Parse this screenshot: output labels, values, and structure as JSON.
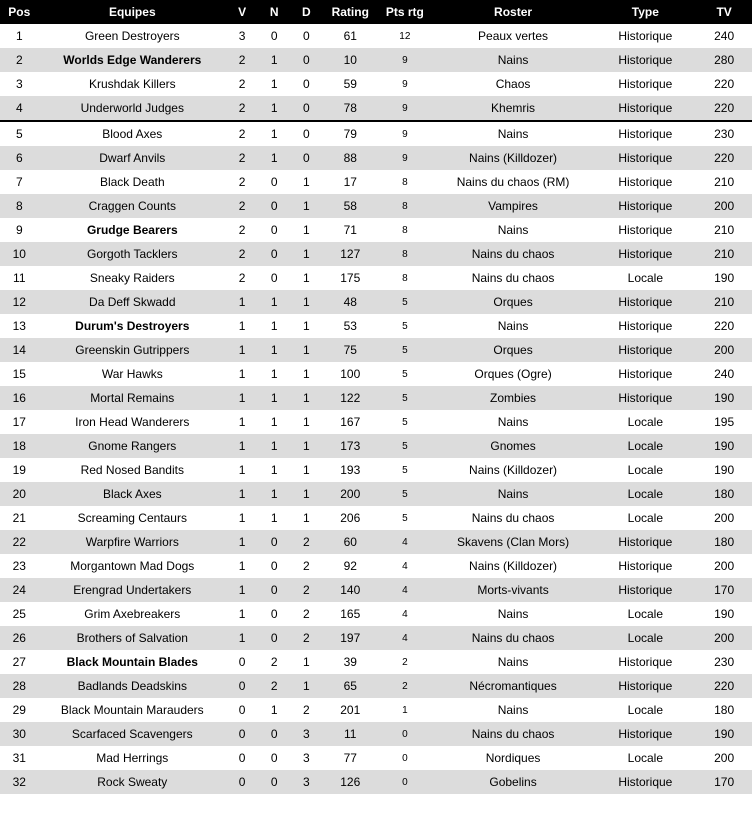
{
  "columns": [
    "Pos",
    "Equipes",
    "V",
    "N",
    "D",
    "Rating",
    "Pts rtg",
    "Roster",
    "Type",
    "TV"
  ],
  "separator_after": 4,
  "rows": [
    {
      "pos": 1,
      "equipe": "Green Destroyers",
      "bold": false,
      "v": 3,
      "n": 0,
      "d": 0,
      "rating": 61,
      "ptsrtg": 12,
      "roster": "Peaux vertes",
      "type": "Historique",
      "tv": 240
    },
    {
      "pos": 2,
      "equipe": "Worlds Edge Wanderers",
      "bold": true,
      "v": 2,
      "n": 1,
      "d": 0,
      "rating": 10,
      "ptsrtg": 9,
      "roster": "Nains",
      "type": "Historique",
      "tv": 280
    },
    {
      "pos": 3,
      "equipe": "Krushdak Killers",
      "bold": false,
      "v": 2,
      "n": 1,
      "d": 0,
      "rating": 59,
      "ptsrtg": 9,
      "roster": "Chaos",
      "type": "Historique",
      "tv": 220
    },
    {
      "pos": 4,
      "equipe": "Underworld Judges",
      "bold": false,
      "v": 2,
      "n": 1,
      "d": 0,
      "rating": 78,
      "ptsrtg": 9,
      "roster": "Khemris",
      "type": "Historique",
      "tv": 220
    },
    {
      "pos": 5,
      "equipe": "Blood Axes",
      "bold": false,
      "v": 2,
      "n": 1,
      "d": 0,
      "rating": 79,
      "ptsrtg": 9,
      "roster": "Nains",
      "type": "Historique",
      "tv": 230
    },
    {
      "pos": 6,
      "equipe": "Dwarf Anvils",
      "bold": false,
      "v": 2,
      "n": 1,
      "d": 0,
      "rating": 88,
      "ptsrtg": 9,
      "roster": "Nains (Killdozer)",
      "type": "Historique",
      "tv": 220
    },
    {
      "pos": 7,
      "equipe": "Black Death",
      "bold": false,
      "v": 2,
      "n": 0,
      "d": 1,
      "rating": 17,
      "ptsrtg": 8,
      "roster": "Nains du chaos (RM)",
      "type": "Historique",
      "tv": 210
    },
    {
      "pos": 8,
      "equipe": "Craggen Counts",
      "bold": false,
      "v": 2,
      "n": 0,
      "d": 1,
      "rating": 58,
      "ptsrtg": 8,
      "roster": "Vampires",
      "type": "Historique",
      "tv": 200
    },
    {
      "pos": 9,
      "equipe": "Grudge Bearers",
      "bold": true,
      "v": 2,
      "n": 0,
      "d": 1,
      "rating": 71,
      "ptsrtg": 8,
      "roster": "Nains",
      "type": "Historique",
      "tv": 210
    },
    {
      "pos": 10,
      "equipe": "Gorgoth Tacklers",
      "bold": false,
      "v": 2,
      "n": 0,
      "d": 1,
      "rating": 127,
      "ptsrtg": 8,
      "roster": "Nains du chaos",
      "type": "Historique",
      "tv": 210
    },
    {
      "pos": 11,
      "equipe": "Sneaky Raiders",
      "bold": false,
      "v": 2,
      "n": 0,
      "d": 1,
      "rating": 175,
      "ptsrtg": 8,
      "roster": "Nains du chaos",
      "type": "Locale",
      "tv": 190
    },
    {
      "pos": 12,
      "equipe": "Da Deff Skwadd",
      "bold": false,
      "v": 1,
      "n": 1,
      "d": 1,
      "rating": 48,
      "ptsrtg": 5,
      "roster": "Orques",
      "type": "Historique",
      "tv": 210
    },
    {
      "pos": 13,
      "equipe": "Durum's Destroyers",
      "bold": true,
      "v": 1,
      "n": 1,
      "d": 1,
      "rating": 53,
      "ptsrtg": 5,
      "roster": "Nains",
      "type": "Historique",
      "tv": 220
    },
    {
      "pos": 14,
      "equipe": "Greenskin Gutrippers",
      "bold": false,
      "v": 1,
      "n": 1,
      "d": 1,
      "rating": 75,
      "ptsrtg": 5,
      "roster": "Orques",
      "type": "Historique",
      "tv": 200
    },
    {
      "pos": 15,
      "equipe": "War Hawks",
      "bold": false,
      "v": 1,
      "n": 1,
      "d": 1,
      "rating": 100,
      "ptsrtg": 5,
      "roster": "Orques (Ogre)",
      "type": "Historique",
      "tv": 240
    },
    {
      "pos": 16,
      "equipe": "Mortal Remains",
      "bold": false,
      "v": 1,
      "n": 1,
      "d": 1,
      "rating": 122,
      "ptsrtg": 5,
      "roster": "Zombies",
      "type": "Historique",
      "tv": 190
    },
    {
      "pos": 17,
      "equipe": "Iron Head Wanderers",
      "bold": false,
      "v": 1,
      "n": 1,
      "d": 1,
      "rating": 167,
      "ptsrtg": 5,
      "roster": "Nains",
      "type": "Locale",
      "tv": 195
    },
    {
      "pos": 18,
      "equipe": "Gnome Rangers",
      "bold": false,
      "v": 1,
      "n": 1,
      "d": 1,
      "rating": 173,
      "ptsrtg": 5,
      "roster": "Gnomes",
      "type": "Locale",
      "tv": 190
    },
    {
      "pos": 19,
      "equipe": "Red Nosed Bandits",
      "bold": false,
      "v": 1,
      "n": 1,
      "d": 1,
      "rating": 193,
      "ptsrtg": 5,
      "roster": "Nains (Killdozer)",
      "type": "Locale",
      "tv": 190
    },
    {
      "pos": 20,
      "equipe": "Black Axes",
      "bold": false,
      "v": 1,
      "n": 1,
      "d": 1,
      "rating": 200,
      "ptsrtg": 5,
      "roster": "Nains",
      "type": "Locale",
      "tv": 180
    },
    {
      "pos": 21,
      "equipe": "Screaming Centaurs",
      "bold": false,
      "v": 1,
      "n": 1,
      "d": 1,
      "rating": 206,
      "ptsrtg": 5,
      "roster": "Nains du chaos",
      "type": "Locale",
      "tv": 200
    },
    {
      "pos": 22,
      "equipe": "Warpfire Warriors",
      "bold": false,
      "v": 1,
      "n": 0,
      "d": 2,
      "rating": 60,
      "ptsrtg": 4,
      "roster": "Skavens (Clan Mors)",
      "type": "Historique",
      "tv": 180
    },
    {
      "pos": 23,
      "equipe": "Morgantown Mad Dogs",
      "bold": false,
      "v": 1,
      "n": 0,
      "d": 2,
      "rating": 92,
      "ptsrtg": 4,
      "roster": "Nains (Killdozer)",
      "type": "Historique",
      "tv": 200
    },
    {
      "pos": 24,
      "equipe": "Erengrad Undertakers",
      "bold": false,
      "v": 1,
      "n": 0,
      "d": 2,
      "rating": 140,
      "ptsrtg": 4,
      "roster": "Morts-vivants",
      "type": "Historique",
      "tv": 170
    },
    {
      "pos": 25,
      "equipe": "Grim Axebreakers",
      "bold": false,
      "v": 1,
      "n": 0,
      "d": 2,
      "rating": 165,
      "ptsrtg": 4,
      "roster": "Nains",
      "type": "Locale",
      "tv": 190
    },
    {
      "pos": 26,
      "equipe": "Brothers of Salvation",
      "bold": false,
      "v": 1,
      "n": 0,
      "d": 2,
      "rating": 197,
      "ptsrtg": 4,
      "roster": "Nains du chaos",
      "type": "Locale",
      "tv": 200
    },
    {
      "pos": 27,
      "equipe": "Black Mountain Blades",
      "bold": true,
      "v": 0,
      "n": 2,
      "d": 1,
      "rating": 39,
      "ptsrtg": 2,
      "roster": "Nains",
      "type": "Historique",
      "tv": 230
    },
    {
      "pos": 28,
      "equipe": "Badlands Deadskins",
      "bold": false,
      "v": 0,
      "n": 2,
      "d": 1,
      "rating": 65,
      "ptsrtg": 2,
      "roster": "Nécromantiques",
      "type": "Historique",
      "tv": 220
    },
    {
      "pos": 29,
      "equipe": "Black Mountain Marauders",
      "bold": false,
      "v": 0,
      "n": 1,
      "d": 2,
      "rating": 201,
      "ptsrtg": 1,
      "roster": "Nains",
      "type": "Locale",
      "tv": 180
    },
    {
      "pos": 30,
      "equipe": "Scarfaced Scavengers",
      "bold": false,
      "v": 0,
      "n": 0,
      "d": 3,
      "rating": 11,
      "ptsrtg": 0,
      "roster": "Nains du chaos",
      "type": "Historique",
      "tv": 190
    },
    {
      "pos": 31,
      "equipe": "Mad Herrings",
      "bold": false,
      "v": 0,
      "n": 0,
      "d": 3,
      "rating": 77,
      "ptsrtg": 0,
      "roster": "Nordiques",
      "type": "Locale",
      "tv": 200
    },
    {
      "pos": 32,
      "equipe": "Rock Sweaty",
      "bold": false,
      "v": 0,
      "n": 0,
      "d": 3,
      "rating": 126,
      "ptsrtg": 0,
      "roster": "Gobelins",
      "type": "Historique",
      "tv": 170
    }
  ]
}
